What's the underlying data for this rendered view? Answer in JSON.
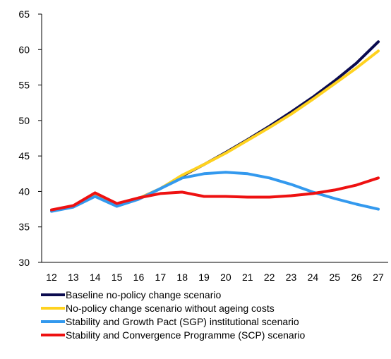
{
  "chart_data": {
    "type": "line",
    "title": "",
    "xlabel": "",
    "ylabel": "",
    "ylim": [
      30,
      65
    ],
    "yticks": [
      30,
      35,
      40,
      45,
      50,
      55,
      60,
      65
    ],
    "categories": [
      "12",
      "13",
      "14",
      "15",
      "16",
      "17",
      "18",
      "19",
      "20",
      "21",
      "22",
      "23",
      "24",
      "25",
      "26",
      "27"
    ],
    "grid": false,
    "legend_position": "bottom",
    "series": [
      {
        "name": "Baseline no-policy change scenario",
        "color": "#0b0b4f",
        "values": [
          37.3,
          37.9,
          39.6,
          38.2,
          39.0,
          40.4,
          42.2,
          43.8,
          45.5,
          47.3,
          49.2,
          51.2,
          53.3,
          55.6,
          58.1,
          61.1
        ]
      },
      {
        "name": "No-policy change scenario without ageing costs",
        "color": "#ffd21f",
        "values": [
          37.3,
          37.9,
          39.6,
          38.2,
          39.0,
          40.4,
          42.3,
          43.8,
          45.4,
          47.2,
          49.0,
          50.9,
          53.0,
          55.2,
          57.4,
          59.8
        ]
      },
      {
        "name": "Stability and Growth Pact (SGP) institutional scenario",
        "color": "#3399ee",
        "values": [
          37.2,
          37.8,
          39.3,
          37.9,
          38.9,
          40.4,
          41.9,
          42.5,
          42.7,
          42.5,
          41.9,
          41.0,
          39.9,
          39.0,
          38.2,
          37.5
        ]
      },
      {
        "name": "Stability and Convergence Programme (SCP) scenario",
        "color": "#ee1111",
        "values": [
          37.4,
          38.0,
          39.8,
          38.3,
          39.1,
          39.7,
          39.9,
          39.3,
          39.3,
          39.2,
          39.2,
          39.4,
          39.7,
          40.2,
          40.9,
          41.9
        ]
      }
    ]
  }
}
